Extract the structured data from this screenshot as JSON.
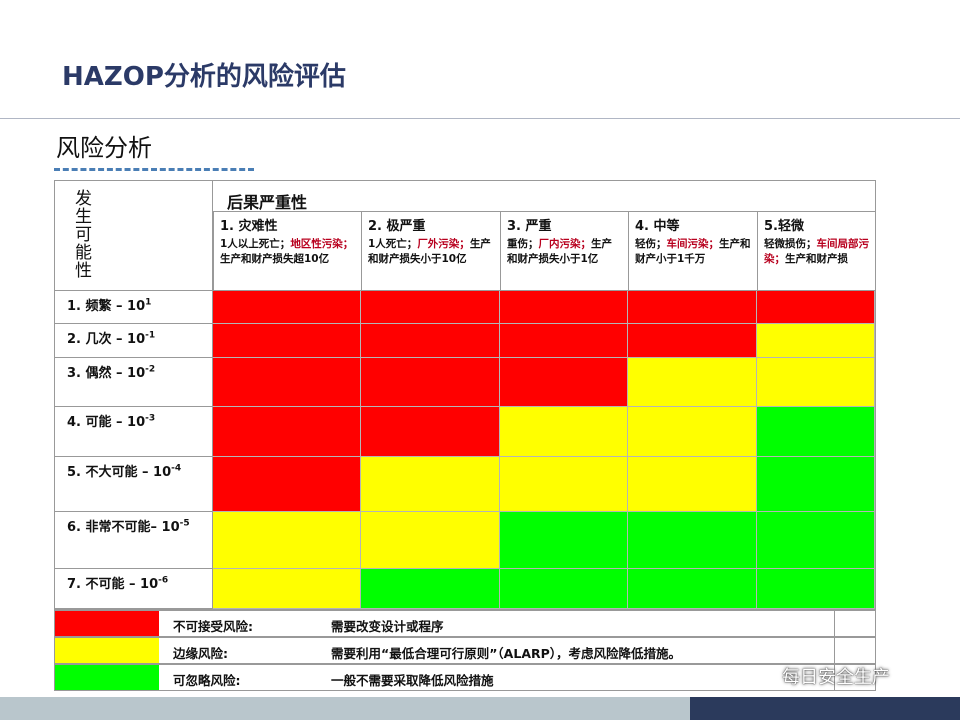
{
  "header": {
    "title": "HAZOP分析的风险评估",
    "subtitle": "风险分析"
  },
  "matrix": {
    "axis_label": "发生可能性",
    "severity_title": "后果严重性",
    "severity": [
      {
        "name": "1. 灾难性",
        "desc_a": "1人以上死亡；",
        "desc_hl": "地区性污染；",
        "desc_b": "生产和财产损失超10亿"
      },
      {
        "name": "2. 极严重",
        "desc_a": "1人死亡；",
        "desc_hl": "厂外污染；",
        "desc_b": "生产和财产损失小于10亿"
      },
      {
        "name": "3. 严重",
        "desc_a": "重伤；",
        "desc_hl": "厂内污染；",
        "desc_b": "生产和财产损失小于1亿"
      },
      {
        "name": "4. 中等",
        "desc_a": "轻伤；",
        "desc_hl": "车间污染；",
        "desc_b": "生产和财产小于1千万"
      },
      {
        "name": "5.轻微",
        "desc_a": "轻微损伤；",
        "desc_hl": "车间局部污染；",
        "desc_b": "生产和财产损"
      }
    ],
    "likelihood": [
      {
        "label": "1. 频繁 – 10",
        "exp": "1"
      },
      {
        "label": "2. 几次 – 10",
        "exp": "-1"
      },
      {
        "label": "3. 偶然 – 10",
        "exp": "-2"
      },
      {
        "label": "4. 可能 – 10",
        "exp": "-3"
      },
      {
        "label": "5. 不大可能 – 10",
        "exp": "-4"
      },
      {
        "label": "6. 非常不可能– 10",
        "exp": "-5"
      },
      {
        "label": "7.  不可能 –  10",
        "exp": "-6"
      }
    ],
    "grid": [
      [
        "R",
        "R",
        "R",
        "R",
        "R"
      ],
      [
        "R",
        "R",
        "R",
        "R",
        "Y"
      ],
      [
        "R",
        "R",
        "R",
        "Y",
        "Y"
      ],
      [
        "R",
        "R",
        "Y",
        "Y",
        "G"
      ],
      [
        "R",
        "Y",
        "Y",
        "Y",
        "G"
      ],
      [
        "Y",
        "Y",
        "G",
        "G",
        "G"
      ],
      [
        "Y",
        "G",
        "G",
        "G",
        "G"
      ]
    ],
    "colors": {
      "R": "#ff0000",
      "Y": "#ffff00",
      "G": "#00ff00"
    }
  },
  "legend": [
    {
      "level": "R",
      "name": "不可接受风险:",
      "desc": "需要改变设计或程序"
    },
    {
      "level": "Y",
      "name": "边缘风险:",
      "desc": "需要利用“最低合理可行原则”（ALARP），考虑风险降低措施。"
    },
    {
      "level": "G",
      "name": "可忽略风险:",
      "desc": "一般不需要采取降低风险措施"
    }
  ],
  "watermark": {
    "text": "每日安全生产",
    "icon": "wechat-icon"
  }
}
